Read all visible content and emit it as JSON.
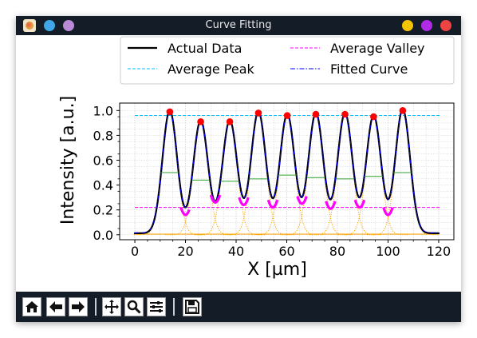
{
  "window": {
    "title": "Curve Fitting",
    "traffic_left": [
      "#3fa7e8",
      "#b98bd6"
    ],
    "traffic_right": [
      "#f5c400",
      "#b02ae8",
      "#f04444"
    ]
  },
  "toolbar": {
    "buttons": [
      "home-icon",
      "back-arrow-icon",
      "forward-arrow-icon",
      "pan-icon",
      "zoom-icon",
      "configure-subplots-icon",
      "save-icon"
    ]
  },
  "chart_data": {
    "type": "line",
    "xlabel": "X [µm]",
    "ylabel": "Intensity [a.u.]",
    "xlim": [
      -6,
      126
    ],
    "ylim": [
      -0.04,
      1.06
    ],
    "xticks": [
      "0",
      "20",
      "40",
      "60",
      "80",
      "100",
      "120"
    ],
    "yticks": [
      "0.0",
      "0.2",
      "0.4",
      "0.6",
      "0.8",
      "1.0"
    ],
    "grid": true,
    "legend_placement": "top",
    "legend": [
      {
        "label": "Actual Data",
        "color": "#000000",
        "style": "solid"
      },
      {
        "label": "Average Valley",
        "color": "#ff00ff",
        "style": "dashed"
      },
      {
        "label": "Average Peak",
        "color": "#00bfff",
        "style": "dashed"
      },
      {
        "label": "Fitted Curve",
        "color": "#0000ff",
        "style": "dashdot"
      }
    ],
    "average_peak": 0.96,
    "average_valley": 0.22,
    "peaks": [
      {
        "x": 13.8,
        "y": 0.99
      },
      {
        "x": 26.0,
        "y": 0.91
      },
      {
        "x": 37.5,
        "y": 0.91
      },
      {
        "x": 48.8,
        "y": 0.98
      },
      {
        "x": 60.2,
        "y": 0.96
      },
      {
        "x": 71.5,
        "y": 0.97
      },
      {
        "x": 83.0,
        "y": 0.97
      },
      {
        "x": 94.3,
        "y": 0.95
      },
      {
        "x": 105.8,
        "y": 1.0
      }
    ],
    "midlines": [
      0.5,
      0.44,
      0.43,
      0.45,
      0.48,
      0.46,
      0.45,
      0.47,
      0.5
    ],
    "valleys": [
      {
        "x": 20.0,
        "y": 0.16
      },
      {
        "x": 31.8,
        "y": 0.26
      },
      {
        "x": 43.0,
        "y": 0.24
      },
      {
        "x": 54.5,
        "y": 0.22
      },
      {
        "x": 66.0,
        "y": 0.25
      },
      {
        "x": 77.3,
        "y": 0.21
      },
      {
        "x": 88.8,
        "y": 0.22
      },
      {
        "x": 100.0,
        "y": 0.16
      }
    ],
    "colors": {
      "peak_marker": "#ff0000",
      "valley_marker": "#ff00ff",
      "midline": "#2ca02c",
      "component": "#ffa500"
    }
  }
}
